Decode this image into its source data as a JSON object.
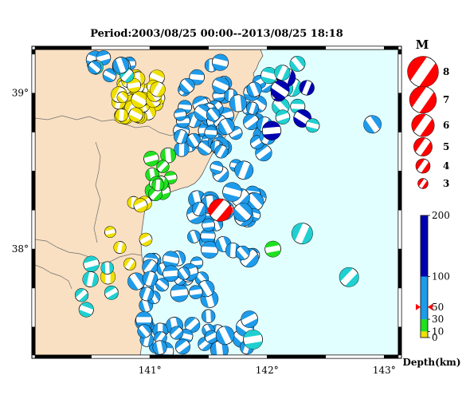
{
  "title": "Period:2003/08/25 00:00--2013/08/25 18:18",
  "colors": {
    "land": "#f9e0c2",
    "sea": "#e2ffff",
    "coast_line": "#5a5a5a",
    "mainshock": "#ff0000",
    "depth_0_10": "#f0e000",
    "depth_10_30": "#20e020",
    "depth_30_100": "#1e9bea",
    "depth_100_200": "#0000b0",
    "depth_100_cyan": "#20d0d0"
  },
  "map": {
    "lon_labels": [
      "141°",
      "142°",
      "143°"
    ],
    "lat_labels": [
      "39°",
      "38°"
    ]
  },
  "magnitude_legend": {
    "header": "M",
    "entries": [
      {
        "label": "8",
        "m": 8
      },
      {
        "label": "7",
        "m": 7
      },
      {
        "label": "6",
        "m": 6
      },
      {
        "label": "5",
        "m": 5
      },
      {
        "label": "4",
        "m": 4
      },
      {
        "label": "3",
        "m": 3
      }
    ]
  },
  "depth_legend": {
    "label": "Depth(km)",
    "ticks": [
      "0",
      "10",
      "30",
      "50",
      "100",
      "200"
    ],
    "marker_depth": 50
  },
  "mainshock": {
    "lon": 141.6,
    "lat": 38.25,
    "depth": 50,
    "mag": 6
  }
}
